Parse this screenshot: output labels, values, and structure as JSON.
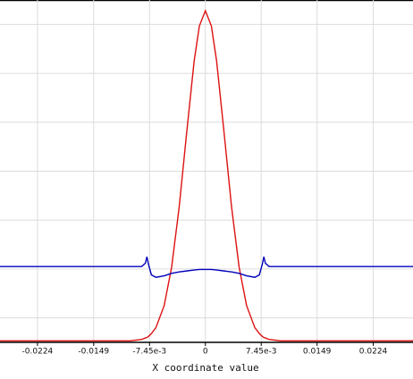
{
  "chart_data": {
    "type": "line",
    "x_label": "X coordinate value",
    "x": [
      -0.0274,
      -0.0224,
      -0.0149,
      -0.01,
      -0.0085,
      -0.008,
      -0.0078,
      -0.0076,
      -0.0072,
      -0.0066,
      -0.0055,
      -0.0045,
      -0.0035,
      -0.0025,
      -0.0015,
      -0.0008,
      0,
      0.0008,
      0.0015,
      0.0025,
      0.0035,
      0.0045,
      0.0055,
      0.0066,
      0.0072,
      0.0076,
      0.0078,
      0.008,
      0.0085,
      0.01,
      0.0149,
      0.0224,
      0.0277
    ],
    "series": [
      {
        "color": "#dd1111",
        "values": [
          0.03,
          0.03,
          0.03,
          0.03,
          0.06,
          0.09,
          0.1,
          0.12,
          0.18,
          0.3,
          0.75,
          1.54,
          2.76,
          4.28,
          5.75,
          6.47,
          6.78,
          6.47,
          5.75,
          4.28,
          2.76,
          1.54,
          0.75,
          0.3,
          0.18,
          0.12,
          0.1,
          0.09,
          0.06,
          0.03,
          0.03,
          0.03,
          0.03
        ]
      },
      {
        "color": "#0000bb",
        "values": [
          1.55,
          1.55,
          1.55,
          1.55,
          1.55,
          1.62,
          1.75,
          1.6,
          1.38,
          1.33,
          1.36,
          1.41,
          1.44,
          1.46,
          1.48,
          1.49,
          1.49,
          1.49,
          1.48,
          1.46,
          1.44,
          1.41,
          1.36,
          1.33,
          1.38,
          1.6,
          1.75,
          1.62,
          1.55,
          1.55,
          1.55,
          1.55,
          1.55
        ]
      }
    ],
    "xlim": [
      -0.0274,
      0.0277
    ],
    "xticks": [
      -0.0224,
      -0.0149,
      {
        "value": -0.00745,
        "label": "-7.45e-3"
      },
      0,
      {
        "value": 0.00745,
        "label": "7.45e-3"
      },
      0.0149,
      0.0224
    ],
    "ylim": [
      0,
      7
    ],
    "yticks": [
      0.5,
      1.5,
      2.5,
      3.5,
      4.5,
      5.5,
      6.5
    ],
    "grid": true
  }
}
